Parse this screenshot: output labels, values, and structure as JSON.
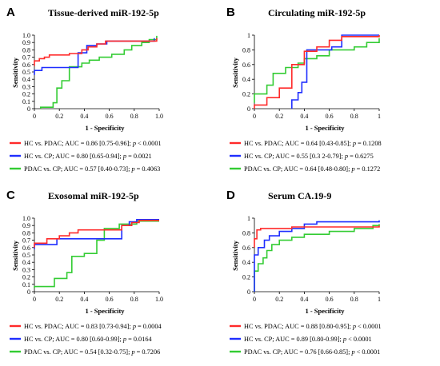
{
  "series_colors": [
    "#ff2a2a",
    "#1f2eff",
    "#33cc33"
  ],
  "chart_data": [
    {
      "type": "line",
      "panel_label": "A",
      "title": "Tissue-derived miR-192-5p",
      "xlabel": "1 - Specificity",
      "ylabel": "Sensitivity",
      "xlim": [
        0,
        1.0
      ],
      "ylim": [
        0,
        1.0
      ],
      "xticks": [
        "0",
        "0.2",
        "0.4",
        "0.6",
        "0.8",
        "1.0"
      ],
      "yticks": [
        "0",
        "0.1",
        "0.2",
        "0.3",
        "0.4",
        "0.5",
        "0.6",
        "0.7",
        "0.8",
        "0.9",
        "1.0"
      ],
      "series": [
        {
          "name": "HC vs. PDAC",
          "legend": {
            "prefix": "HC vs. PDAC; AUC = 0.86 [0.75-0.96]; ",
            "p_label": "p",
            "p_text": " < 0.0001"
          },
          "points": [
            [
              0,
              0.58
            ],
            [
              0,
              0.65
            ],
            [
              0.04,
              0.65
            ],
            [
              0.04,
              0.68
            ],
            [
              0.08,
              0.68
            ],
            [
              0.08,
              0.7
            ],
            [
              0.12,
              0.7
            ],
            [
              0.12,
              0.73
            ],
            [
              0.28,
              0.73
            ],
            [
              0.28,
              0.75
            ],
            [
              0.38,
              0.75
            ],
            [
              0.38,
              0.8
            ],
            [
              0.43,
              0.8
            ],
            [
              0.43,
              0.84
            ],
            [
              0.5,
              0.84
            ],
            [
              0.5,
              0.88
            ],
            [
              0.57,
              0.88
            ],
            [
              0.57,
              0.92
            ],
            [
              0.98,
              0.92
            ],
            [
              0.98,
              0.96
            ]
          ]
        },
        {
          "name": "HC vs. CP",
          "legend": {
            "prefix": "HC vs. CP; AUC = 0.80 [0.65-0.94]; ",
            "p_label": "p",
            "p_text": " = 0.0021"
          },
          "points": [
            [
              0,
              0.46
            ],
            [
              0,
              0.52
            ],
            [
              0.06,
              0.52
            ],
            [
              0.06,
              0.56
            ],
            [
              0.35,
              0.56
            ],
            [
              0.35,
              0.76
            ],
            [
              0.42,
              0.76
            ],
            [
              0.42,
              0.86
            ],
            [
              0.5,
              0.86
            ],
            [
              0.5,
              0.88
            ],
            [
              0.58,
              0.88
            ],
            [
              0.58,
              0.92
            ],
            [
              0.96,
              0.92
            ],
            [
              0.96,
              0.96
            ]
          ]
        },
        {
          "name": "PDAC vs. CP",
          "legend": {
            "prefix": "PDAC vs. CP; AUC = 0.57 [0.40-0.73]; ",
            "p_label": "p",
            "p_text": " = 0.4063"
          },
          "points": [
            [
              0.05,
              0
            ],
            [
              0.05,
              0.02
            ],
            [
              0.15,
              0.02
            ],
            [
              0.15,
              0.08
            ],
            [
              0.18,
              0.08
            ],
            [
              0.18,
              0.28
            ],
            [
              0.22,
              0.28
            ],
            [
              0.22,
              0.38
            ],
            [
              0.28,
              0.38
            ],
            [
              0.28,
              0.57
            ],
            [
              0.38,
              0.57
            ],
            [
              0.38,
              0.62
            ],
            [
              0.44,
              0.62
            ],
            [
              0.44,
              0.66
            ],
            [
              0.52,
              0.66
            ],
            [
              0.52,
              0.7
            ],
            [
              0.62,
              0.7
            ],
            [
              0.62,
              0.74
            ],
            [
              0.72,
              0.74
            ],
            [
              0.72,
              0.8
            ],
            [
              0.78,
              0.8
            ],
            [
              0.78,
              0.86
            ],
            [
              0.86,
              0.86
            ],
            [
              0.86,
              0.9
            ],
            [
              0.92,
              0.9
            ],
            [
              0.92,
              0.94
            ],
            [
              0.98,
              0.94
            ],
            [
              0.98,
              0.99
            ]
          ]
        }
      ]
    },
    {
      "type": "line",
      "panel_label": "B",
      "title": "Circulating miR-192-5p",
      "xlabel": "1 - Specificity",
      "ylabel": "Sensitivity",
      "xlim": [
        0,
        1.0
      ],
      "ylim": [
        0,
        1.0
      ],
      "xticks": [
        "0",
        "0.2",
        "0.4",
        "0.6",
        "0.8",
        "1"
      ],
      "yticks": [
        "0",
        "0.2",
        "0.4",
        "0.6",
        "0.8",
        "1"
      ],
      "series": [
        {
          "name": "HC vs. PDAC",
          "legend": {
            "prefix": "HC vs. PDAC; AUC = 0.64 [0.43-0.85]; ",
            "p_label": "p",
            "p_text": " = 0.1208"
          },
          "points": [
            [
              0,
              0
            ],
            [
              0,
              0.05
            ],
            [
              0.1,
              0.05
            ],
            [
              0.1,
              0.15
            ],
            [
              0.2,
              0.15
            ],
            [
              0.2,
              0.28
            ],
            [
              0.3,
              0.28
            ],
            [
              0.3,
              0.6
            ],
            [
              0.4,
              0.6
            ],
            [
              0.4,
              0.78
            ],
            [
              0.5,
              0.78
            ],
            [
              0.5,
              0.84
            ],
            [
              0.6,
              0.84
            ],
            [
              0.6,
              0.93
            ],
            [
              0.7,
              0.93
            ],
            [
              0.7,
              0.98
            ],
            [
              1,
              0.98
            ],
            [
              1,
              1
            ]
          ]
        },
        {
          "name": "HC vs. CP",
          "legend": {
            "prefix": "HC vs. CP; AUC = 0.55 [0.3 2-0.79]; ",
            "p_label": "p",
            "p_text": " = 0.6275"
          },
          "points": [
            [
              0.3,
              0
            ],
            [
              0.3,
              0.12
            ],
            [
              0.35,
              0.12
            ],
            [
              0.35,
              0.22
            ],
            [
              0.38,
              0.22
            ],
            [
              0.38,
              0.36
            ],
            [
              0.42,
              0.36
            ],
            [
              0.42,
              0.8
            ],
            [
              0.62,
              0.8
            ],
            [
              0.62,
              0.84
            ],
            [
              0.7,
              0.84
            ],
            [
              0.7,
              1
            ],
            [
              1,
              1
            ]
          ]
        },
        {
          "name": "PDAC vs. CP",
          "legend": {
            "prefix": "PDAC vs. CP; AUC = 0.64 [0.48-0.80]; ",
            "p_label": "p",
            "p_text": " = 0.1272"
          },
          "points": [
            [
              0,
              0.08
            ],
            [
              0,
              0.2
            ],
            [
              0.1,
              0.2
            ],
            [
              0.1,
              0.32
            ],
            [
              0.15,
              0.32
            ],
            [
              0.15,
              0.48
            ],
            [
              0.25,
              0.48
            ],
            [
              0.25,
              0.56
            ],
            [
              0.35,
              0.56
            ],
            [
              0.35,
              0.62
            ],
            [
              0.4,
              0.62
            ],
            [
              0.4,
              0.68
            ],
            [
              0.5,
              0.68
            ],
            [
              0.5,
              0.72
            ],
            [
              0.6,
              0.72
            ],
            [
              0.6,
              0.8
            ],
            [
              0.8,
              0.8
            ],
            [
              0.8,
              0.84
            ],
            [
              0.9,
              0.84
            ],
            [
              0.9,
              0.9
            ],
            [
              1,
              0.9
            ],
            [
              1,
              0.96
            ]
          ]
        }
      ]
    },
    {
      "type": "line",
      "panel_label": "C",
      "title": "Exosomal miR-192-5p",
      "xlabel": "1 - Specificity",
      "ylabel": "Sensitivity",
      "xlim": [
        0,
        1.0
      ],
      "ylim": [
        0,
        1.0
      ],
      "xticks": [
        "0",
        "0.2",
        "0.4",
        "0.6",
        "0.8",
        "1.0"
      ],
      "yticks": [
        "0",
        "0.1",
        "0.2",
        "0.3",
        "0.4",
        "0.5",
        "0.6",
        "0.7",
        "0.8",
        "0.9",
        "1.0"
      ],
      "series": [
        {
          "name": "HC vs. PDAC",
          "legend": {
            "prefix": "HC vs. PDAC; AUC = 0.83 [0.73-0.94]; ",
            "p_label": "p",
            "p_text": " = 0.0004"
          },
          "points": [
            [
              0,
              0.6
            ],
            [
              0,
              0.66
            ],
            [
              0.1,
              0.66
            ],
            [
              0.1,
              0.72
            ],
            [
              0.2,
              0.72
            ],
            [
              0.2,
              0.76
            ],
            [
              0.28,
              0.76
            ],
            [
              0.28,
              0.8
            ],
            [
              0.35,
              0.8
            ],
            [
              0.35,
              0.84
            ],
            [
              0.7,
              0.84
            ],
            [
              0.7,
              0.9
            ],
            [
              0.78,
              0.9
            ],
            [
              0.78,
              0.94
            ],
            [
              0.84,
              0.94
            ],
            [
              0.84,
              0.97
            ],
            [
              1,
              0.97
            ]
          ]
        },
        {
          "name": "HC vs. CP",
          "legend": {
            "prefix": "HC vs. CP; AUC = 0.80 [0.60-0.99]; ",
            "p_label": "p",
            "p_text": " = 0.0164"
          },
          "points": [
            [
              0,
              0.58
            ],
            [
              0,
              0.64
            ],
            [
              0.18,
              0.64
            ],
            [
              0.18,
              0.72
            ],
            [
              0.7,
              0.72
            ],
            [
              0.7,
              0.9
            ],
            [
              0.76,
              0.9
            ],
            [
              0.76,
              0.95
            ],
            [
              0.82,
              0.95
            ],
            [
              0.82,
              0.98
            ],
            [
              1,
              0.98
            ]
          ]
        },
        {
          "name": "PDAC vs. CP",
          "legend": {
            "prefix": "PDAC vs. CP; AUC = 0.54 [0.32-0.75]; ",
            "p_label": "p",
            "p_text": " = 0.7206"
          },
          "points": [
            [
              0,
              0.05
            ],
            [
              0,
              0.07
            ],
            [
              0.16,
              0.07
            ],
            [
              0.16,
              0.18
            ],
            [
              0.26,
              0.18
            ],
            [
              0.26,
              0.26
            ],
            [
              0.3,
              0.26
            ],
            [
              0.3,
              0.48
            ],
            [
              0.4,
              0.48
            ],
            [
              0.4,
              0.52
            ],
            [
              0.5,
              0.52
            ],
            [
              0.5,
              0.7
            ],
            [
              0.56,
              0.7
            ],
            [
              0.56,
              0.86
            ],
            [
              0.68,
              0.86
            ],
            [
              0.68,
              0.92
            ],
            [
              0.82,
              0.92
            ],
            [
              0.82,
              0.96
            ],
            [
              1,
              0.96
            ]
          ]
        }
      ]
    },
    {
      "type": "line",
      "panel_label": "D",
      "title": "Serum CA.19-9",
      "xlabel": "1 - Specificity",
      "ylabel": "Sensitivity",
      "xlim": [
        0,
        1.0
      ],
      "ylim": [
        0,
        1.0
      ],
      "xticks": [
        "0",
        "0.2",
        "0.4",
        "0.6",
        "0.8",
        "1"
      ],
      "yticks": [
        "0",
        "0.2",
        "0.4",
        "0.6",
        "0.8",
        "1"
      ],
      "series": [
        {
          "name": "HC vs. PDAC",
          "legend": {
            "prefix": "HC vs. PDAC; AUC = 0.88 [0.80-0.95]; ",
            "p_label": "p",
            "p_text": " < 0.0001"
          },
          "points": [
            [
              0,
              0.6
            ],
            [
              0,
              0.72
            ],
            [
              0.02,
              0.72
            ],
            [
              0.02,
              0.84
            ],
            [
              0.05,
              0.84
            ],
            [
              0.05,
              0.86
            ],
            [
              0.3,
              0.86
            ],
            [
              0.3,
              0.88
            ],
            [
              1,
              0.88
            ],
            [
              1,
              0.9
            ]
          ]
        },
        {
          "name": "HC vs. CP",
          "legend": {
            "prefix": "HC vs. CP; AUC = 0.89 [0.80-0.99]; ",
            "p_label": "p",
            "p_text": " < 0.0001"
          },
          "points": [
            [
              0,
              0
            ],
            [
              0,
              0.5
            ],
            [
              0.03,
              0.5
            ],
            [
              0.03,
              0.6
            ],
            [
              0.08,
              0.6
            ],
            [
              0.08,
              0.7
            ],
            [
              0.12,
              0.7
            ],
            [
              0.12,
              0.76
            ],
            [
              0.2,
              0.76
            ],
            [
              0.2,
              0.82
            ],
            [
              0.3,
              0.82
            ],
            [
              0.3,
              0.86
            ],
            [
              0.4,
              0.86
            ],
            [
              0.4,
              0.92
            ],
            [
              0.5,
              0.92
            ],
            [
              0.5,
              0.95
            ],
            [
              1,
              0.95
            ],
            [
              1,
              0.97
            ]
          ]
        },
        {
          "name": "PDAC vs. CP",
          "legend": {
            "prefix": "PDAC vs. CP; AUC = 0.76 [0.66-0.85]; ",
            "p_label": "p",
            "p_text": " < 0.0001"
          },
          "points": [
            [
              0,
              0
            ],
            [
              0,
              0.28
            ],
            [
              0.03,
              0.28
            ],
            [
              0.03,
              0.38
            ],
            [
              0.07,
              0.38
            ],
            [
              0.07,
              0.46
            ],
            [
              0.1,
              0.46
            ],
            [
              0.1,
              0.56
            ],
            [
              0.14,
              0.56
            ],
            [
              0.14,
              0.64
            ],
            [
              0.2,
              0.64
            ],
            [
              0.2,
              0.7
            ],
            [
              0.3,
              0.7
            ],
            [
              0.3,
              0.74
            ],
            [
              0.4,
              0.74
            ],
            [
              0.4,
              0.78
            ],
            [
              0.6,
              0.78
            ],
            [
              0.6,
              0.82
            ],
            [
              0.8,
              0.82
            ],
            [
              0.8,
              0.86
            ],
            [
              0.95,
              0.86
            ],
            [
              0.95,
              0.9
            ],
            [
              1,
              0.9
            ],
            [
              1,
              0.92
            ]
          ]
        }
      ]
    }
  ]
}
